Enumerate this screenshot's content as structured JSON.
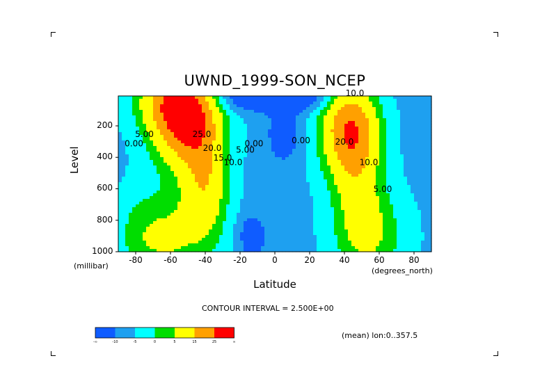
{
  "chart_data": {
    "type": "heatmap",
    "title": "UWND_1999-SON_NCEP",
    "xlabel": "Latitude",
    "ylabel": "Level",
    "x_units": "(degrees_north)",
    "y_units": "(millibar)",
    "xlim": [
      -90,
      90
    ],
    "ylim": [
      1000,
      10
    ],
    "y_inverted": true,
    "x_ticks": [
      "-80",
      "-60",
      "-40",
      "-20",
      "0",
      "20",
      "40",
      "60",
      "80"
    ],
    "y_ticks": [
      "200",
      "400",
      "600",
      "800",
      "1000"
    ],
    "contour_interval_label": "CONTOUR INTERVAL = 2.500E+00",
    "subtitle_note": "(mean) lon:0..357.5",
    "color_levels": [
      -15,
      -10,
      -5,
      0,
      5,
      15,
      25
    ],
    "colorbar": {
      "colors": [
        "#0f5cff",
        "#1ea0f0",
        "#00ffff",
        "#00dd00",
        "#ffff00",
        "#ffa000",
        "#ff0000"
      ],
      "tick_labels": [
        "-∞",
        "-10",
        "-5",
        "0",
        "5",
        "15",
        "25",
        "∞"
      ]
    },
    "contour_labels": [
      {
        "text": "10.0",
        "lat": 46,
        "lev": 10
      },
      {
        "text": "25.0",
        "lat": -42,
        "lev": 270
      },
      {
        "text": "20.0",
        "lat": -36,
        "lev": 360
      },
      {
        "text": "15.0",
        "lat": -30,
        "lev": 420
      },
      {
        "text": "10.0",
        "lat": -24,
        "lev": 450
      },
      {
        "text": "5.00",
        "lat": -17,
        "lev": 370
      },
      {
        "text": "0.00",
        "lat": -12,
        "lev": 330
      },
      {
        "text": "0.00",
        "lat": -81,
        "lev": 330
      },
      {
        "text": "5.00",
        "lat": -75,
        "lev": 270
      },
      {
        "text": "0.00",
        "lat": 15,
        "lev": 310
      },
      {
        "text": "20.0",
        "lat": 40,
        "lev": 320
      },
      {
        "text": "10.0",
        "lat": 54,
        "lev": 450
      },
      {
        "text": "5.00",
        "lat": 62,
        "lev": 620
      }
    ]
  }
}
